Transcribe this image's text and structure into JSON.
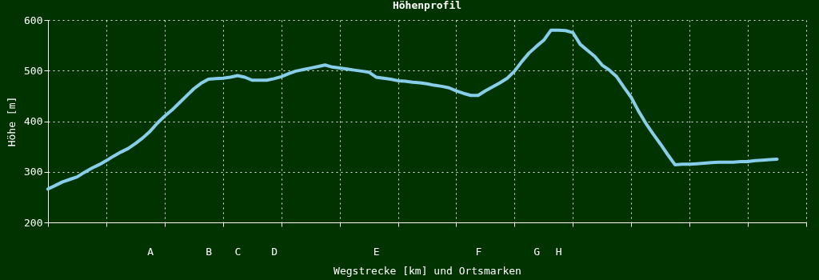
{
  "chart_data": {
    "type": "line",
    "title": "Höhenprofil",
    "xlabel": "Wegstrecke [km] und Ortsmarken",
    "ylabel": "Höhe [m]",
    "categories": [
      null,
      null,
      null,
      null,
      null,
      null,
      null,
      null,
      null,
      null,
      null,
      null,
      null,
      null,
      "A",
      null,
      null,
      null,
      null,
      null,
      null,
      null,
      "B",
      null,
      null,
      null,
      "C",
      null,
      null,
      null,
      null,
      "D",
      null,
      null,
      null,
      null,
      null,
      null,
      null,
      null,
      null,
      null,
      null,
      null,
      null,
      "E",
      null,
      null,
      null,
      null,
      null,
      null,
      null,
      null,
      null,
      null,
      null,
      null,
      null,
      "F",
      null,
      null,
      null,
      null,
      null,
      null,
      null,
      "G",
      null,
      null,
      "H",
      null,
      null,
      null,
      null,
      null,
      null,
      null,
      null,
      null,
      null,
      null,
      null,
      null,
      null,
      null,
      null,
      null,
      null,
      null,
      null,
      null,
      null,
      null,
      null,
      null,
      null,
      null,
      null,
      null,
      null,
      null,
      null,
      null,
      null
    ],
    "series": [
      {
        "color": "#87ceeb",
        "values": [
          266,
          273,
          280,
          285,
          290,
          299,
          307,
          314,
          322,
          331,
          339,
          346,
          356,
          367,
          380,
          396,
          410,
          422,
          436,
          450,
          464,
          475,
          483,
          484,
          485,
          487,
          490,
          487,
          481,
          481,
          481,
          484,
          488,
          494,
          499,
          502,
          505,
          508,
          511,
          507,
          505,
          503,
          501,
          499,
          497,
          487,
          485,
          483,
          480,
          479,
          477,
          476,
          474,
          471,
          469,
          466,
          460,
          455,
          451,
          451,
          460,
          468,
          476,
          485,
          499,
          518,
          535,
          548,
          560,
          580,
          580,
          579,
          575,
          552,
          540,
          528,
          511,
          501,
          488,
          467,
          447,
          420,
          396,
          375,
          355,
          334,
          314,
          315,
          315,
          316,
          317,
          318,
          319,
          319,
          319,
          320,
          320,
          322,
          323,
          324,
          325,
          null,
          null,
          null,
          null
        ]
      }
    ],
    "ylim": [
      200,
      600
    ],
    "yticks": [
      200,
      300,
      400,
      500,
      600
    ],
    "grid": true,
    "marker": "none",
    "line_style": "solid"
  }
}
